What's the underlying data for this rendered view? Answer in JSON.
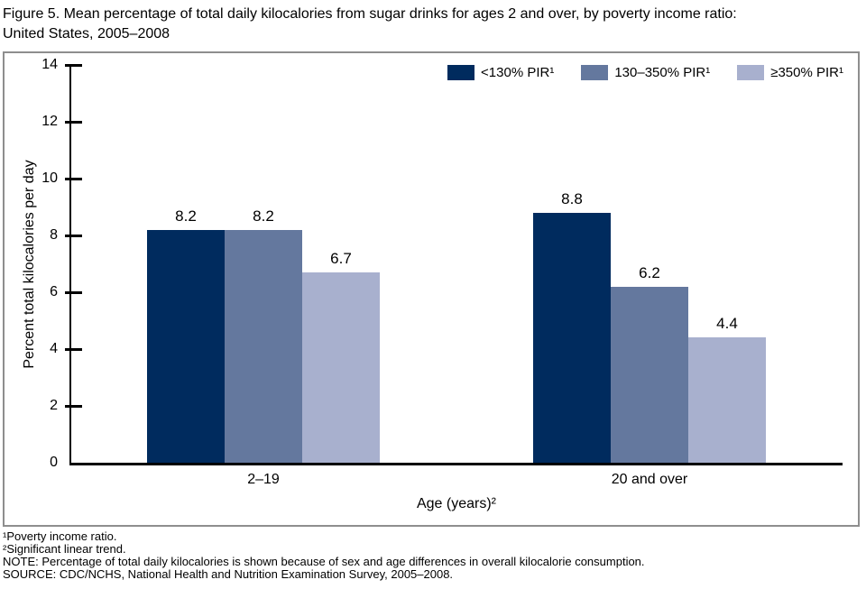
{
  "header": {
    "title_lines": [
      "Figure 5. Mean percentage of total daily kilocalories from sugar drinks for ages 2 and over, by poverty income ratio:",
      "United States, 2005–2008"
    ]
  },
  "chart_data": {
    "type": "bar",
    "title": "Figure 5. Mean percentage of total daily kilocalories from sugar drinks for ages 2 and over, by poverty income ratio: United States, 2005–2008",
    "categories": [
      "2–19",
      "20 and over"
    ],
    "series": [
      {
        "name": "<130% PIR¹",
        "color": "#002b5e",
        "values": [
          8.2,
          8.8
        ]
      },
      {
        "name": "130–350% PIR¹",
        "color": "#64789e",
        "values": [
          8.2,
          6.2
        ]
      },
      {
        "name": "≥350% PIR¹",
        "color": "#a8b0ce",
        "values": [
          6.7,
          4.4
        ]
      }
    ],
    "xlabel": "Age (years)²",
    "ylabel": "Percent total kilocalories per day",
    "ylim": [
      0,
      14
    ],
    "yticks": [
      0,
      2,
      4,
      6,
      8,
      10,
      12,
      14
    ],
    "legend_position": "top-right",
    "grid": false,
    "value_labels": true
  },
  "footnotes": [
    "¹Poverty income ratio.",
    "²Significant linear trend.",
    "NOTE: Percentage of total daily kilocalories is shown because of sex and age differences in overall kilocalorie consumption.",
    "SOURCE: CDC/NCHS, National Health and Nutrition Examination Survey, 2005–2008."
  ]
}
